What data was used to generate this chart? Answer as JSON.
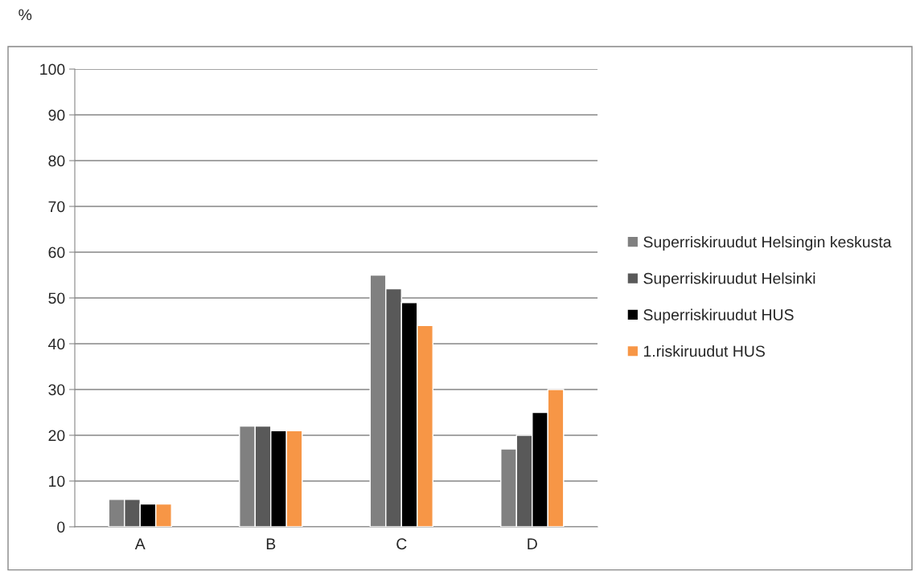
{
  "chart_data": {
    "type": "bar",
    "ylabel": "%",
    "categories": [
      "A",
      "B",
      "C",
      "D"
    ],
    "series": [
      {
        "name": "Superriskiruudut Helsingin keskusta",
        "color": "#808080",
        "values": [
          6,
          22,
          55,
          17
        ]
      },
      {
        "name": "Superriskiruudut Helsinki",
        "color": "#595959",
        "values": [
          6,
          22,
          52,
          20
        ]
      },
      {
        "name": "Superriskiruudut HUS",
        "color": "#000000",
        "values": [
          5,
          21,
          49,
          25
        ]
      },
      {
        "name": "1.riskiruudut HUS",
        "color": "#f79646",
        "values": [
          5,
          21,
          44,
          30
        ]
      }
    ],
    "ylim": [
      0,
      100
    ],
    "yticks": [
      0,
      10,
      20,
      30,
      40,
      50,
      60,
      70,
      80,
      90,
      100
    ],
    "grid": "y",
    "legend": "right"
  }
}
